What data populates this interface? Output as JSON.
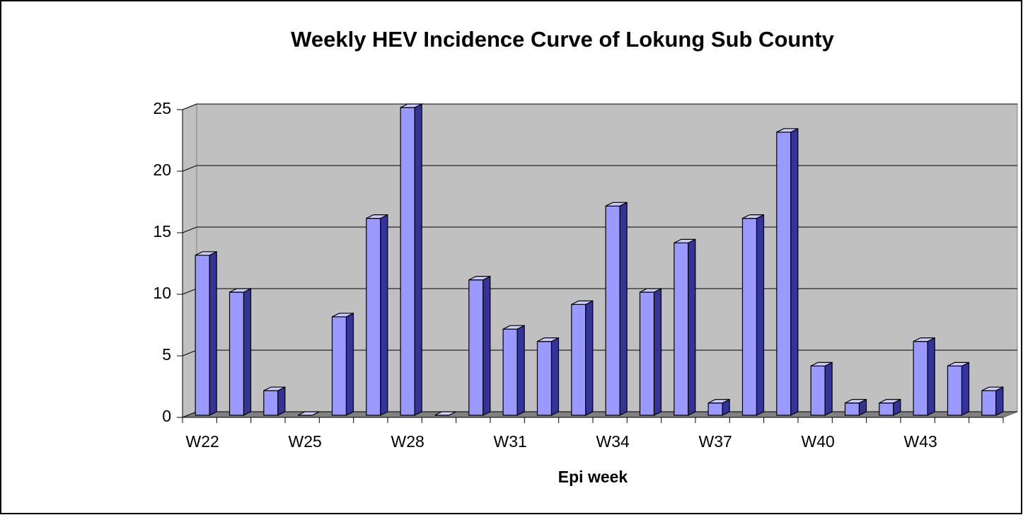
{
  "chart_data": {
    "type": "bar3d",
    "title": "Weekly HEV Incidence Curve of Lokung Sub County",
    "x_label": "Epi week",
    "categories": [
      "W22",
      null,
      null,
      "W25",
      null,
      null,
      "W28",
      null,
      null,
      "W31",
      null,
      null,
      "W34",
      null,
      null,
      "W37",
      null,
      null,
      "W40",
      null,
      null,
      "W43",
      null,
      null
    ],
    "values": [
      13,
      10,
      2,
      0,
      8,
      16,
      25,
      0,
      11,
      7,
      6,
      9,
      17,
      10,
      14,
      1,
      16,
      23,
      4,
      1,
      1,
      6,
      4,
      2
    ],
    "color": "#9999ff",
    "ylim": [
      0,
      25
    ],
    "yticks": [
      0,
      5,
      10,
      15,
      20,
      25
    ],
    "grid": true
  }
}
